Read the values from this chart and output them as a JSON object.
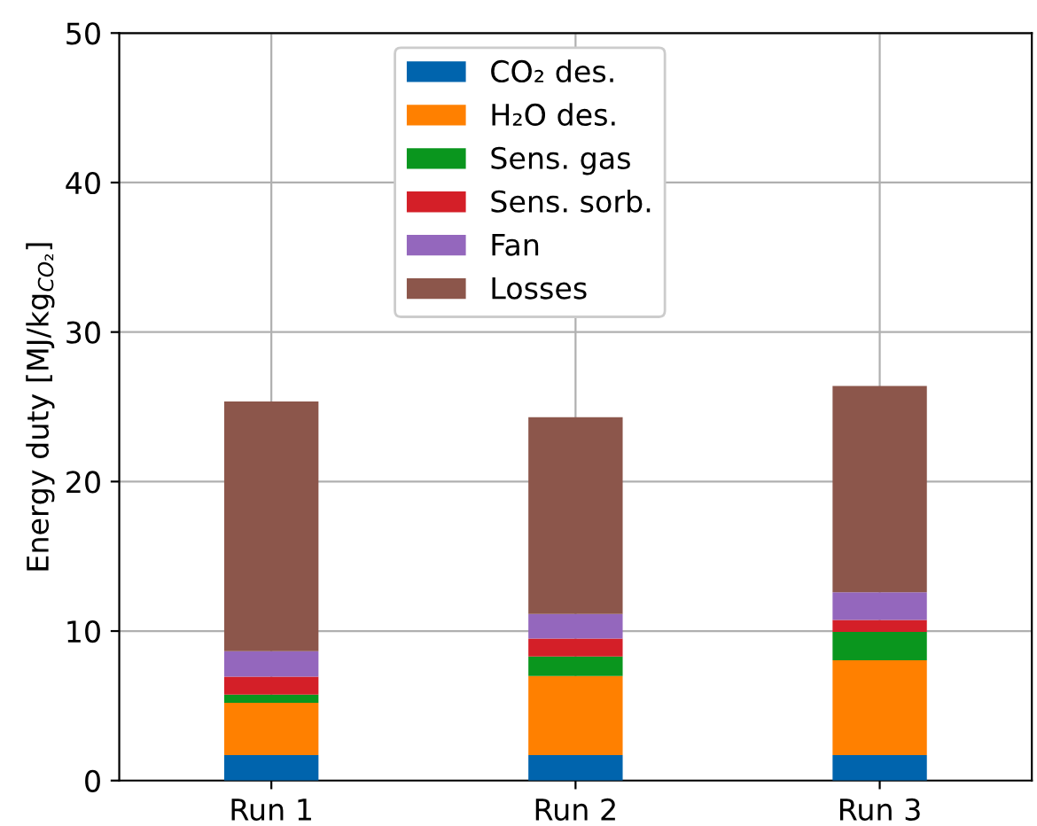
{
  "chart_data": {
    "type": "bar",
    "stacked": true,
    "ylabel": "Energy duty [MJ/kg$_{CO₂}$]",
    "categories": [
      "Run 1",
      "Run 2",
      "Run 3"
    ],
    "series": [
      {
        "name": "CO₂ des.",
        "color": "#0064ad",
        "values": [
          1.7,
          1.7,
          1.7
        ]
      },
      {
        "name": "H₂O des.",
        "color": "#ff8000",
        "values": [
          3.5,
          5.3,
          6.35
        ]
      },
      {
        "name": "Sens. gas",
        "color": "#0a961e",
        "values": [
          0.55,
          1.3,
          1.9
        ]
      },
      {
        "name": "Sens. sorb.",
        "color": "#d41f28",
        "values": [
          1.2,
          1.2,
          0.8
        ]
      },
      {
        "name": "Fan",
        "color": "#9467bd",
        "values": [
          1.7,
          1.65,
          1.85
        ]
      },
      {
        "name": "Losses",
        "color": "#8c564b",
        "values": [
          16.7,
          13.15,
          13.8
        ]
      }
    ],
    "ylim": [
      0,
      50
    ],
    "yticks": [
      0,
      10,
      20,
      30,
      40,
      50
    ],
    "grid": true,
    "legend": "top center"
  }
}
